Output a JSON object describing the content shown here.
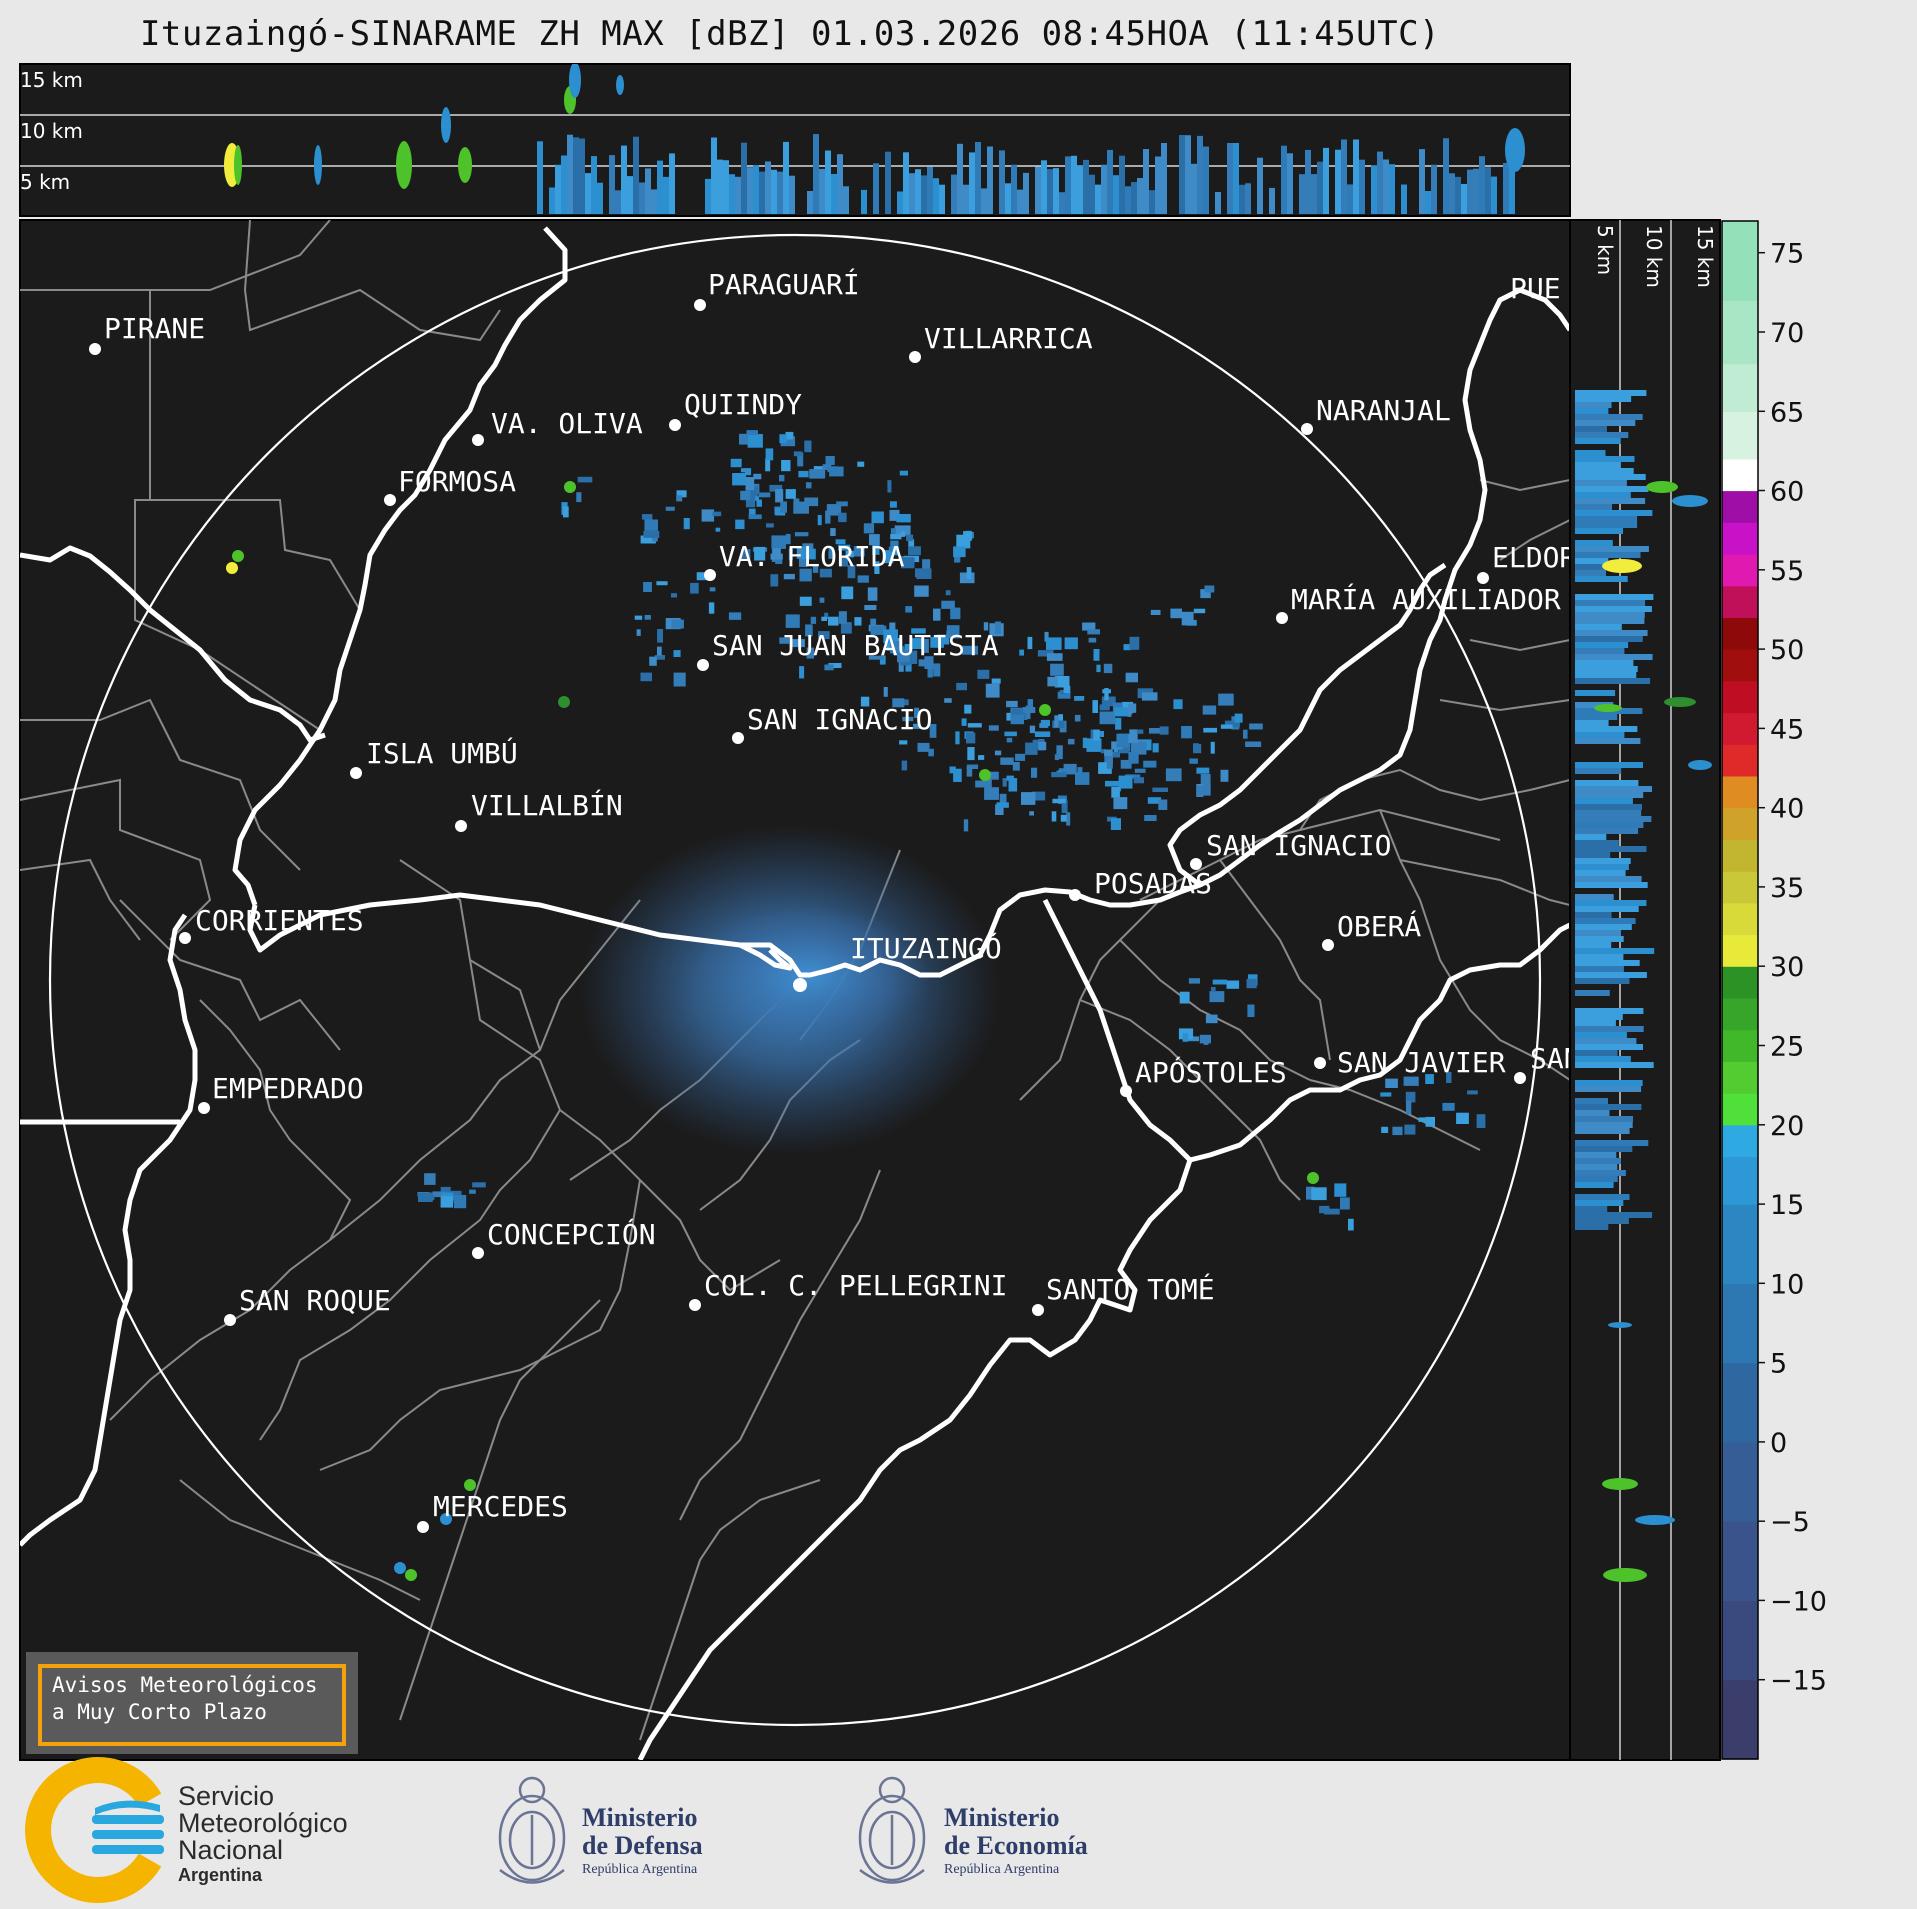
{
  "title": "Ituzaingó-SINARAME ZH MAX [dBZ] 01.03.2026 08:45HOA (11:45UTC)",
  "top_profile": {
    "height_labels": [
      "15 km",
      "10 km",
      "5 km"
    ]
  },
  "side_profile": {
    "height_labels": [
      "5 km",
      "10 km",
      "15 km"
    ]
  },
  "colorbar": {
    "unit": "dBZ",
    "ticks": [
      "75",
      "70",
      "65",
      "60",
      "55",
      "50",
      "45",
      "40",
      "35",
      "30",
      "25",
      "20",
      "15",
      "10",
      "5",
      "0",
      "−5",
      "−10",
      "−15"
    ],
    "range": [
      -20,
      77
    ]
  },
  "radar": {
    "name": "ITUZAINGÓ"
  },
  "cities": [
    {
      "name": "PIRANE"
    },
    {
      "name": "PARAGUARÍ"
    },
    {
      "name": "VILLARRICA"
    },
    {
      "name": "QUIINDY"
    },
    {
      "name": "VA. OLIVA"
    },
    {
      "name": "NARANJAL"
    },
    {
      "name": "FORMOSA"
    },
    {
      "name": "VA. FLORIDA"
    },
    {
      "name": "ELDOR"
    },
    {
      "name": "MARÍA AUXILIADOR"
    },
    {
      "name": "SAN JUAN BAUTISTA"
    },
    {
      "name": "SAN IGNACIO"
    },
    {
      "name": "ISLA UMBÚ"
    },
    {
      "name": "VILLALBÍN"
    },
    {
      "name": "SAN IGNACIO"
    },
    {
      "name": "POSADAS"
    },
    {
      "name": "CORRIENTES"
    },
    {
      "name": "OBERÁ"
    },
    {
      "name": "APÓSTOLES"
    },
    {
      "name": "SAN JAVIER"
    },
    {
      "name": "SAN"
    },
    {
      "name": "EMPEDRADO"
    },
    {
      "name": "CONCEPCIÓN"
    },
    {
      "name": "COL. C. PELLEGRINI"
    },
    {
      "name": "SANTO TOMÉ"
    },
    {
      "name": "SAN ROQUE"
    },
    {
      "name": "MERCEDES"
    },
    {
      "name": "PUE"
    }
  ],
  "warning": {
    "line1": "Avisos Meteorológicos",
    "line2": "a Muy Corto Plazo"
  },
  "logos": {
    "smn": {
      "line1": "Servicio",
      "line2": "Meteorológico",
      "line3": "Nacional",
      "line4": "Argentina"
    },
    "defensa": {
      "line1": "Ministerio",
      "line2": "de Defensa",
      "line3": "República Argentina"
    },
    "economia": {
      "line1": "Ministerio",
      "line2": "de Economía",
      "line3": "República Argentina"
    }
  },
  "colors": {
    "background": "#1b1b1b",
    "page": "#e8e8e8",
    "river": "#ffffff",
    "boundary": "#8a8a8a",
    "warning_border": "#f4a20c"
  }
}
